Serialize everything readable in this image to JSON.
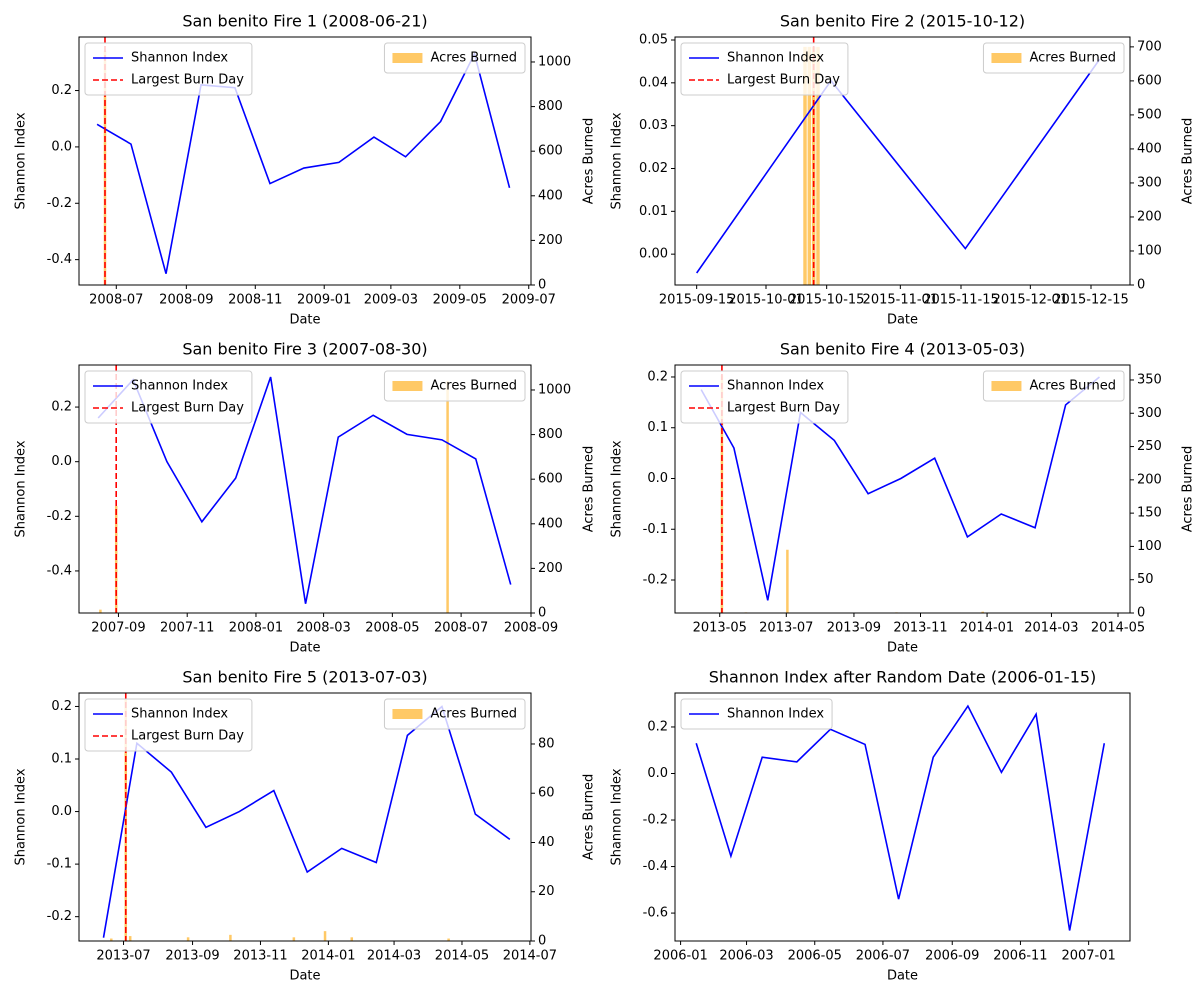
{
  "chart_data": [
    {
      "type": "line",
      "title": "San benito Fire 1 (2008-06-21)",
      "xlabel": "Date",
      "ylabel": "Shannon Index",
      "y2label": "Acres Burned",
      "legend": "upper left",
      "legend2": "upper right",
      "series": [
        {
          "name": "Shannon Index",
          "color": "#0000ff",
          "x": [
            "2008-06-14",
            "2008-07-14",
            "2008-08-14",
            "2008-09-14",
            "2008-10-14",
            "2008-11-14",
            "2008-12-14",
            "2009-01-14",
            "2009-02-14",
            "2009-03-14",
            "2009-04-14",
            "2009-05-14",
            "2009-06-14"
          ],
          "values": [
            0.08,
            0.01,
            -0.45,
            0.22,
            0.21,
            -0.13,
            -0.075,
            -0.055,
            0.035,
            -0.035,
            0.09,
            0.33,
            -0.145
          ]
        },
        {
          "name": "Acres Burned",
          "type": "bar",
          "axis": "y2",
          "color": "#ffa500",
          "alpha": 0.6,
          "x": [
            "2008-06-21"
          ],
          "values": [
            1050
          ]
        }
      ],
      "burn_day": {
        "name": "Largest Burn Day",
        "x": "2008-06-21",
        "color": "#ff0000"
      },
      "xlim": [
        "2008-05-29",
        "2009-07-03"
      ],
      "xticks": [
        {
          "value": "2008-07-01",
          "label": "2008-07"
        },
        {
          "value": "2008-09-01",
          "label": "2008-09"
        },
        {
          "value": "2008-11-01",
          "label": "2008-11"
        },
        {
          "value": "2009-01-01",
          "label": "2009-01"
        },
        {
          "value": "2009-03-01",
          "label": "2009-03"
        },
        {
          "value": "2009-05-01",
          "label": "2009-05"
        },
        {
          "value": "2009-07-01",
          "label": "2009-07"
        }
      ],
      "ylim": [
        -0.49,
        0.39
      ],
      "yticks": [
        -0.4,
        -0.2,
        {
          "value": 0,
          "label": "0.0"
        },
        0.2
      ],
      "y2lim": [
        0,
        1112
      ],
      "y2ticks": [
        0,
        200,
        400,
        600,
        800,
        1000
      ]
    },
    {
      "type": "line",
      "title": "San benito Fire 2 (2015-10-12)",
      "xlabel": "Date",
      "ylabel": "Shannon Index",
      "y2label": "Acres Burned",
      "legend": "upper left",
      "legend2": "upper right",
      "series": [
        {
          "name": "Shannon Index",
          "color": "#0000ff",
          "x": [
            "2015-09-15",
            "2015-10-16",
            "2015-11-16",
            "2015-12-17"
          ],
          "values": [
            -0.0044,
            0.0405,
            0.0013,
            0.0455
          ]
        },
        {
          "name": "Acres Burned",
          "type": "bar",
          "axis": "y2",
          "color": "#ffa500",
          "alpha": 0.6,
          "x": [
            "2015-10-10",
            "2015-10-11",
            "2015-10-12",
            "2015-10-13"
          ],
          "values": [
            700,
            700,
            700,
            700
          ]
        }
      ],
      "burn_day": {
        "name": "Largest Burn Day",
        "x": "2015-10-12",
        "color": "#ff0000"
      },
      "xlim": [
        "2015-09-10",
        "2015-12-24"
      ],
      "xticks": [
        {
          "value": "2015-09-15",
          "label": "2015-09-15"
        },
        {
          "value": "2015-10-01",
          "label": "2015-10-01"
        },
        {
          "value": "2015-10-15",
          "label": "2015-10-15"
        },
        {
          "value": "2015-11-01",
          "label": "2015-11-01"
        },
        {
          "value": "2015-11-15",
          "label": "2015-11-15"
        },
        {
          "value": "2015-12-01",
          "label": "2015-12-01"
        },
        {
          "value": "2015-12-15",
          "label": "2015-12-15"
        }
      ],
      "ylim": [
        -0.0072,
        0.0507
      ],
      "yticks": [
        {
          "value": 0,
          "label": "0.00"
        },
        0.01,
        0.02,
        0.03,
        0.04,
        0.05
      ],
      "y2lim": [
        0,
        729
      ],
      "y2ticks": [
        0,
        100,
        200,
        300,
        400,
        500,
        600,
        700
      ]
    },
    {
      "type": "line",
      "title": "San benito Fire 3 (2007-08-30)",
      "xlabel": "Date",
      "ylabel": "Shannon Index",
      "y2label": "Acres Burned",
      "legend": "upper left",
      "legend2": "upper right",
      "series": [
        {
          "name": "Shannon Index",
          "color": "#0000ff",
          "x": [
            "2007-08-14",
            "2007-09-14",
            "2007-10-14",
            "2007-11-14",
            "2007-12-14",
            "2008-01-14",
            "2008-02-14",
            "2008-03-14",
            "2008-04-14",
            "2008-05-14",
            "2008-06-14",
            "2008-07-14",
            "2008-08-14"
          ],
          "values": [
            0.16,
            0.3,
            0.0,
            -0.22,
            -0.06,
            0.31,
            -0.52,
            0.09,
            0.17,
            0.1,
            0.08,
            0.01,
            -0.45
          ]
        },
        {
          "name": "Acres Burned",
          "type": "bar",
          "axis": "y2",
          "color": "#ffa500",
          "alpha": 0.6,
          "x": [
            "2007-08-16",
            "2007-08-30",
            "2008-06-19"
          ],
          "values": [
            15,
            480,
            1040
          ]
        }
      ],
      "burn_day": {
        "name": "Largest Burn Day",
        "x": "2007-08-30",
        "color": "#ff0000"
      },
      "xlim": [
        "2007-07-28",
        "2008-09-01"
      ],
      "xticks": [
        {
          "value": "2007-09-01",
          "label": "2007-09"
        },
        {
          "value": "2007-11-01",
          "label": "2007-11"
        },
        {
          "value": "2008-01-01",
          "label": "2008-01"
        },
        {
          "value": "2008-03-01",
          "label": "2008-03"
        },
        {
          "value": "2008-05-01",
          "label": "2008-05"
        },
        {
          "value": "2008-07-01",
          "label": "2008-07"
        },
        {
          "value": "2008-09-01",
          "label": "2008-09"
        }
      ],
      "ylim": [
        -0.554,
        0.354
      ],
      "yticks": [
        -0.4,
        -0.2,
        {
          "value": 0,
          "label": "0.0"
        },
        0.2
      ],
      "y2lim": [
        0,
        1112
      ],
      "y2ticks": [
        0,
        200,
        400,
        600,
        800,
        1000
      ]
    },
    {
      "type": "line",
      "title": "San benito Fire 4 (2013-05-03)",
      "xlabel": "Date",
      "ylabel": "Shannon Index",
      "y2label": "Acres Burned",
      "legend": "upper left",
      "legend2": "upper right",
      "series": [
        {
          "name": "Shannon Index",
          "color": "#0000ff",
          "x": [
            "2013-04-14",
            "2013-05-14",
            "2013-06-14",
            "2013-07-14",
            "2013-08-14",
            "2013-09-14",
            "2013-10-14",
            "2013-11-14",
            "2013-12-14",
            "2014-01-14",
            "2014-02-14",
            "2014-03-14",
            "2014-04-14"
          ],
          "values": [
            0.175,
            0.06,
            -0.24,
            0.13,
            0.075,
            -0.03,
            0.0,
            0.04,
            -0.115,
            -0.07,
            -0.097,
            0.145,
            0.2
          ]
        },
        {
          "name": "Acres Burned",
          "type": "bar",
          "axis": "y2",
          "color": "#ffa500",
          "alpha": 0.6,
          "x": [
            "2013-05-03",
            "2013-05-25",
            "2013-07-02",
            "2013-10-10",
            "2013-12-28"
          ],
          "values": [
            357,
            1,
            95,
            1,
            2
          ]
        }
      ],
      "burn_day": {
        "name": "Largest Burn Day",
        "x": "2013-05-03",
        "color": "#ff0000"
      },
      "xlim": [
        "2013-03-21",
        "2014-05-12"
      ],
      "xticks": [
        {
          "value": "2013-05-01",
          "label": "2013-05"
        },
        {
          "value": "2013-07-01",
          "label": "2013-07"
        },
        {
          "value": "2013-09-01",
          "label": "2013-09"
        },
        {
          "value": "2013-11-01",
          "label": "2013-11"
        },
        {
          "value": "2014-01-01",
          "label": "2014-01"
        },
        {
          "value": "2014-03-01",
          "label": "2014-03"
        },
        {
          "value": "2014-05-01",
          "label": "2014-05"
        }
      ],
      "ylim": [
        -0.265,
        0.2236
      ],
      "yticks": [
        -0.2,
        -0.1,
        {
          "value": 0,
          "label": "0.0"
        },
        0.1,
        0.2
      ],
      "y2lim": [
        0,
        372.5
      ],
      "y2ticks": [
        0,
        50,
        100,
        150,
        200,
        250,
        300,
        350
      ]
    },
    {
      "type": "line",
      "title": "San benito Fire 5 (2013-07-03)",
      "xlabel": "Date",
      "ylabel": "Shannon Index",
      "y2label": "Acres Burned",
      "legend": "upper left",
      "legend2": "upper right",
      "series": [
        {
          "name": "Shannon Index",
          "color": "#0000ff",
          "x": [
            "2013-06-13",
            "2013-07-13",
            "2013-08-13",
            "2013-09-13",
            "2013-10-13",
            "2013-11-13",
            "2013-12-13",
            "2014-01-13",
            "2014-02-13",
            "2014-03-13",
            "2014-04-13",
            "2014-05-13",
            "2014-06-13"
          ],
          "values": [
            -0.24,
            0.13,
            0.075,
            -0.03,
            0.0,
            0.04,
            -0.115,
            -0.07,
            -0.097,
            0.145,
            0.2,
            -0.005,
            -0.053
          ]
        },
        {
          "name": "Acres Burned",
          "type": "bar",
          "axis": "y2",
          "color": "#ffa500",
          "alpha": 0.6,
          "x": [
            "2013-06-20",
            "2013-07-03",
            "2013-07-07",
            "2013-08-28",
            "2013-10-05",
            "2013-12-01",
            "2013-12-29",
            "2014-01-22",
            "2014-04-19"
          ],
          "values": [
            1,
            98,
            2,
            1.5,
            2.5,
            1.5,
            4,
            1.5,
            1
          ]
        }
      ],
      "burn_day": {
        "name": "Largest Burn Day",
        "x": "2013-07-03",
        "color": "#ff0000"
      },
      "xlim": [
        "2013-05-22",
        "2014-07-02"
      ],
      "xticks": [
        {
          "value": "2013-07-01",
          "label": "2013-07"
        },
        {
          "value": "2013-09-01",
          "label": "2013-09"
        },
        {
          "value": "2013-11-01",
          "label": "2013-11"
        },
        {
          "value": "2014-01-01",
          "label": "2014-01"
        },
        {
          "value": "2014-03-01",
          "label": "2014-03"
        },
        {
          "value": "2014-05-01",
          "label": "2014-05"
        },
        {
          "value": "2014-07-01",
          "label": "2014-07"
        }
      ],
      "ylim": [
        -0.2463,
        0.2256
      ],
      "yticks": [
        -0.2,
        -0.1,
        {
          "value": 0,
          "label": "0.0"
        },
        0.1,
        0.2
      ],
      "y2lim": [
        0,
        100.7
      ],
      "y2ticks": [
        0,
        20,
        40,
        60,
        80
      ]
    },
    {
      "type": "line",
      "title": "Shannon Index after Random Date (2006-01-15)",
      "xlabel": "Date",
      "ylabel": "Shannon Index",
      "legend": "upper left",
      "series": [
        {
          "name": "Shannon Index",
          "color": "#0000ff",
          "x": [
            "2006-01-15",
            "2006-02-15",
            "2006-03-15",
            "2006-04-15",
            "2006-05-15",
            "2006-06-15",
            "2006-07-15",
            "2006-08-15",
            "2006-09-15",
            "2006-10-15",
            "2006-11-15",
            "2006-12-15",
            "2007-01-15"
          ],
          "values": [
            0.13,
            -0.355,
            0.07,
            0.05,
            0.19,
            0.125,
            -0.54,
            0.07,
            0.29,
            0.005,
            0.255,
            -0.675,
            0.13
          ]
        }
      ],
      "xlim": [
        "2005-12-27",
        "2007-02-07"
      ],
      "xticks": [
        {
          "value": "2006-01-01",
          "label": "2006-01"
        },
        {
          "value": "2006-03-01",
          "label": "2006-03"
        },
        {
          "value": "2006-05-01",
          "label": "2006-05"
        },
        {
          "value": "2006-07-01",
          "label": "2006-07"
        },
        {
          "value": "2006-09-01",
          "label": "2006-09"
        },
        {
          "value": "2006-11-01",
          "label": "2006-11"
        },
        {
          "value": "2007-01-01",
          "label": "2007-01"
        }
      ],
      "ylim": [
        -0.72,
        0.346
      ],
      "yticks": [
        -0.6,
        -0.4,
        -0.2,
        {
          "value": 0,
          "label": "0.0"
        },
        0.2
      ]
    }
  ]
}
